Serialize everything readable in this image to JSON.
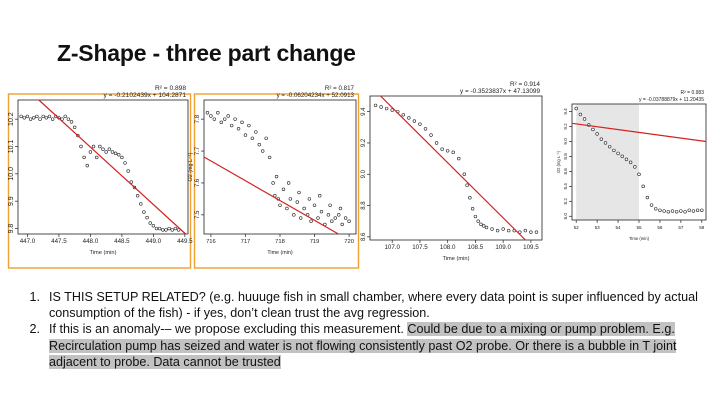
{
  "slide": {
    "title": "Z-Shape - three part change",
    "bullets": [
      {
        "number": "1.",
        "text": "IS THIS SETUP RELATED? (e.g. huuuge fish in small chamber, where every data point is super influenced by actual consumption of the fish) - if yes, don’t clean trust the avg regression.",
        "highlight": ""
      },
      {
        "number": "2.",
        "text": "If this is an anomaly-– we propose excluding this measurement. ",
        "highlight": "Could be due to a mixing or pump problem. E.g. Recirculation pump has seized and water is not flowing consistently past O2 probe. Or there is a bubble in T joint adjacent to probe. Data cannot be trusted"
      }
    ]
  },
  "chart_data": [
    {
      "type": "scatter",
      "r2_text": "R² = 0.898",
      "equation": "y = -0.2102439x + 104.2871",
      "xlabel": "Time (min)",
      "ylabel": "",
      "x_ticks": [
        "447.0",
        "447.5",
        "448.0",
        "448.5",
        "449.0",
        "449.5"
      ],
      "y_ticks": [
        "9.8",
        "9.9",
        "10.0",
        "10.1",
        "10.2"
      ],
      "xlim": [
        446.85,
        449.55
      ],
      "ylim": [
        9.78,
        10.27
      ],
      "regression": {
        "slope": -0.2102439,
        "intercept": 104.2871
      },
      "series": [
        {
          "x": [
            446.9,
            446.95,
            447.0,
            447.05,
            447.1,
            447.15,
            447.2,
            447.25,
            447.3,
            447.35,
            447.4,
            447.45,
            447.5,
            447.55,
            447.6,
            447.65,
            447.7,
            447.75,
            447.8,
            447.85,
            447.9,
            447.95,
            448.0,
            448.05,
            448.1,
            448.15,
            448.2,
            448.25,
            448.3,
            448.35,
            448.4,
            448.45,
            448.5,
            448.55,
            448.6,
            448.65,
            448.7,
            448.75,
            448.8,
            448.85,
            448.9,
            448.95,
            449.0,
            449.05,
            449.1,
            449.15,
            449.2,
            449.25,
            449.3,
            449.35,
            449.4
          ],
          "y": [
            10.21,
            10.205,
            10.21,
            10.2,
            10.205,
            10.21,
            10.2,
            10.21,
            10.205,
            10.21,
            10.2,
            10.21,
            10.205,
            10.2,
            10.21,
            10.2,
            10.19,
            10.17,
            10.14,
            10.1,
            10.06,
            10.03,
            10.08,
            10.1,
            10.06,
            10.1,
            10.09,
            10.08,
            10.09,
            10.08,
            10.075,
            10.07,
            10.06,
            10.04,
            10.01,
            9.97,
            9.95,
            9.92,
            9.89,
            9.86,
            9.84,
            9.82,
            9.81,
            9.8,
            9.8,
            9.795,
            9.795,
            9.8,
            9.795,
            9.8,
            9.795
          ]
        }
      ]
    },
    {
      "type": "scatter",
      "r2_text": "R² = 0.817",
      "equation": "y = -0.06204234x + 52.0913",
      "xlabel": "Time (min)",
      "ylabel": "O2 (mg L⁻¹)",
      "x_ticks": [
        "716",
        "717",
        "718",
        "719",
        "720"
      ],
      "y_ticks": [
        "7.8",
        "7.7",
        "7.6",
        "7.5"
      ],
      "xlim": [
        715.8,
        720.2
      ],
      "ylim": [
        7.44,
        7.86
      ],
      "regression": {
        "slope": -0.06204234,
        "intercept": 52.0913
      },
      "series": [
        {
          "x": [
            715.9,
            716.0,
            716.1,
            716.2,
            716.3,
            716.4,
            716.5,
            716.6,
            716.7,
            716.8,
            716.9,
            717.0,
            717.1,
            717.2,
            717.3,
            717.4,
            717.5,
            717.6,
            717.7,
            717.8,
            717.85,
            717.9,
            717.95,
            718.0,
            718.1,
            718.2,
            718.3,
            718.4,
            718.5,
            718.6,
            718.7,
            718.8,
            718.9,
            719.0,
            719.1,
            719.2,
            719.3,
            719.4,
            719.5,
            719.6,
            719.7,
            719.8,
            719.9,
            720.0,
            718.25,
            718.55,
            718.85,
            719.15,
            719.45,
            719.75
          ],
          "y": [
            7.82,
            7.81,
            7.8,
            7.82,
            7.79,
            7.8,
            7.81,
            7.78,
            7.8,
            7.77,
            7.79,
            7.75,
            7.78,
            7.74,
            7.76,
            7.72,
            7.7,
            7.74,
            7.68,
            7.6,
            7.56,
            7.62,
            7.55,
            7.53,
            7.58,
            7.52,
            7.55,
            7.5,
            7.54,
            7.49,
            7.52,
            7.5,
            7.48,
            7.53,
            7.49,
            7.51,
            7.47,
            7.5,
            7.48,
            7.49,
            7.5,
            7.47,
            7.49,
            7.48,
            7.6,
            7.57,
            7.55,
            7.56,
            7.53,
            7.52
          ]
        }
      ]
    },
    {
      "type": "scatter",
      "r2_text": "R² = 0.914",
      "equation": "y = -0.3523837x + 47.13099",
      "xlabel": "Time (min)",
      "ylabel": "",
      "x_ticks": [
        "107.0",
        "107.5",
        "108.0",
        "108.5",
        "109.0",
        "109.5"
      ],
      "y_ticks": [
        "9.4",
        "9.2",
        "9.0",
        "8.8",
        "8.6"
      ],
      "xlim": [
        106.6,
        109.7
      ],
      "ylim": [
        8.58,
        9.5
      ],
      "regression": {
        "slope": -0.3523837,
        "intercept": 47.13099
      },
      "series": [
        {
          "x": [
            106.7,
            106.8,
            106.9,
            107.0,
            107.1,
            107.2,
            107.3,
            107.4,
            107.5,
            107.6,
            107.7,
            107.8,
            107.9,
            108.0,
            108.1,
            108.2,
            108.3,
            108.35,
            108.4,
            108.45,
            108.5,
            108.55,
            108.6,
            108.65,
            108.7,
            108.8,
            108.9,
            109.0,
            109.1,
            109.2,
            109.3,
            109.4,
            109.5,
            109.6
          ],
          "y": [
            9.44,
            9.43,
            9.42,
            9.41,
            9.4,
            9.38,
            9.36,
            9.34,
            9.32,
            9.29,
            9.25,
            9.2,
            9.16,
            9.15,
            9.14,
            9.1,
            9.0,
            8.93,
            8.85,
            8.78,
            8.73,
            8.7,
            8.68,
            8.67,
            8.66,
            8.65,
            8.64,
            8.65,
            8.64,
            8.64,
            8.63,
            8.64,
            8.63,
            8.63
          ]
        }
      ]
    },
    {
      "type": "scatter",
      "r2_text": "R² = 0.983",
      "equation": "y = -0.03788879x + 11.20435",
      "xlabel": "Time (min)",
      "ylabel": "O2 (mg L⁻¹)",
      "x_ticks": [
        "52",
        "53",
        "54",
        "55",
        "56",
        "57",
        "58"
      ],
      "y_ticks": [
        "9.4",
        "9.2",
        "9.0",
        "8.8",
        "8.6",
        "8.4",
        "8.2",
        "8.0"
      ],
      "xlim": [
        51.8,
        58.2
      ],
      "ylim": [
        7.95,
        9.5
      ],
      "shaded_interval": [
        52.0,
        55.0
      ],
      "regression": {
        "slope": -0.03788879,
        "intercept": 11.20435
      },
      "series": [
        {
          "x": [
            52.0,
            52.2,
            52.4,
            52.6,
            52.8,
            53.0,
            53.2,
            53.4,
            53.6,
            53.8,
            54.0,
            54.2,
            54.4,
            54.6,
            54.8,
            55.0,
            55.2,
            55.4,
            55.6,
            55.8,
            56.0,
            56.2,
            56.4,
            56.6,
            56.8,
            57.0,
            57.2,
            57.4,
            57.6,
            57.8,
            58.0
          ],
          "y": [
            9.44,
            9.36,
            9.3,
            9.22,
            9.16,
            9.1,
            9.03,
            8.98,
            8.93,
            8.88,
            8.84,
            8.8,
            8.76,
            8.72,
            8.66,
            8.56,
            8.4,
            8.25,
            8.15,
            8.1,
            8.08,
            8.07,
            8.06,
            8.07,
            8.06,
            8.07,
            8.06,
            8.08,
            8.07,
            8.08,
            8.08
          ]
        }
      ]
    }
  ],
  "colors": {
    "frame_orange": "#f0a030",
    "regression_line": "#d62020",
    "points": "#222222",
    "shade": "#e6e6e6",
    "highlight": "#c2c2c2"
  }
}
